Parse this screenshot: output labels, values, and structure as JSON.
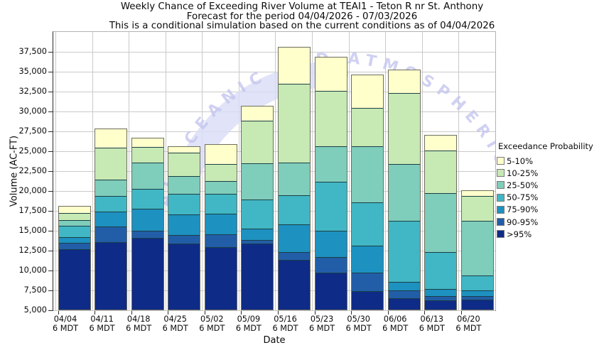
{
  "title": {
    "lines": [
      "Weekly Chance of Exceeding River Volume at TEAI1 - Teton R nr St. Anthony",
      "Forecast for the period 04/04/2026 - 07/03/2026",
      "This is a conditional simulation based on the current conditions as of 04/04/2026"
    ]
  },
  "watermark": {
    "arc_text": "AL OCEANIC AND ATMOSPHERIC ADM",
    "text_color": "#c5c6ef",
    "crescent_color": "#dadcf6"
  },
  "chart_data": {
    "type": "bar",
    "stacked": true,
    "title": "Weekly Chance of Exceeding River Volume at TEAI1 - Teton R nr St. Anthony",
    "subtitle": "Forecast for the period 04/04/2026 - 07/03/2026",
    "note": "This is a conditional simulation based on the current conditions as of 04/04/2026",
    "xlabel": "Date",
    "ylabel": "Volume (AC-FT)",
    "ylim": [
      5000,
      40000
    ],
    "grid": true,
    "yticks": [
      5000,
      7500,
      10000,
      12500,
      15000,
      17500,
      20000,
      22500,
      25000,
      27500,
      30000,
      32500,
      35000,
      37500
    ],
    "ytick_labels": [
      "5,000",
      "7,500",
      "10,000",
      "12,500",
      "15,000",
      "17,500",
      "20,000",
      "22,500",
      "25,000",
      "27,500",
      "30,000",
      "32,500",
      "35,000",
      "37,500"
    ],
    "categories": [
      "04/04",
      "04/11",
      "04/18",
      "04/25",
      "05/02",
      "05/09",
      "05/16",
      "05/23",
      "05/30",
      "06/06",
      "06/13",
      "06/20"
    ],
    "category_sublabel": "6 MDT",
    "baseline": 5000,
    "bar_border_color": "#6e6e5e",
    "segment_border_color": "#1b3f45",
    "series": [
      {
        "name": ">95%",
        "color": "#0e2b88",
        "cumulative_top": [
          12750,
          13650,
          14200,
          13500,
          13000,
          13450,
          11400,
          9800,
          7500,
          6600,
          6300,
          6450
        ]
      },
      {
        "name": "90-95%",
        "color": "#225ea8",
        "cumulative_top": [
          13550,
          15600,
          15100,
          14550,
          14650,
          13900,
          12400,
          11800,
          9850,
          7550,
          6900,
          6900
        ]
      },
      {
        "name": "75-90%",
        "color": "#1d91c0",
        "cumulative_top": [
          14250,
          17500,
          17900,
          17100,
          17200,
          15400,
          15850,
          15050,
          13200,
          8650,
          7750,
          7600
        ]
      },
      {
        "name": "50-75%",
        "color": "#41b6c4",
        "cumulative_top": [
          15700,
          19500,
          20400,
          19700,
          19750,
          19050,
          19550,
          21250,
          18700,
          16350,
          12450,
          9500
        ]
      },
      {
        "name": "25-50%",
        "color": "#7fcdbb",
        "cumulative_top": [
          16400,
          21500,
          23700,
          22000,
          21300,
          23600,
          23700,
          25700,
          25700,
          23500,
          19800,
          16350
        ]
      },
      {
        "name": "10-25%",
        "color": "#c7e9b4",
        "cumulative_top": [
          17300,
          25550,
          25650,
          24900,
          23450,
          28900,
          33600,
          32650,
          30500,
          32450,
          25200,
          19500
        ]
      },
      {
        "name": "5-10%",
        "color": "#ffffcc",
        "cumulative_top": [
          18150,
          27850,
          26700,
          25600,
          25900,
          30700,
          38150,
          36850,
          34650,
          35250,
          27050,
          20100
        ]
      }
    ],
    "legend": {
      "title": "Exceedance Probability",
      "position": "right",
      "entries": [
        {
          "label": "5-10%",
          "color": "#ffffcc"
        },
        {
          "label": "10-25%",
          "color": "#c7e9b4"
        },
        {
          "label": "25-50%",
          "color": "#7fcdbb"
        },
        {
          "label": "50-75%",
          "color": "#41b6c4"
        },
        {
          "label": "75-90%",
          "color": "#1d91c0"
        },
        {
          "label": "90-95%",
          "color": "#225ea8"
        },
        {
          "label": ">95%",
          "color": "#0e2b88"
        }
      ]
    }
  }
}
